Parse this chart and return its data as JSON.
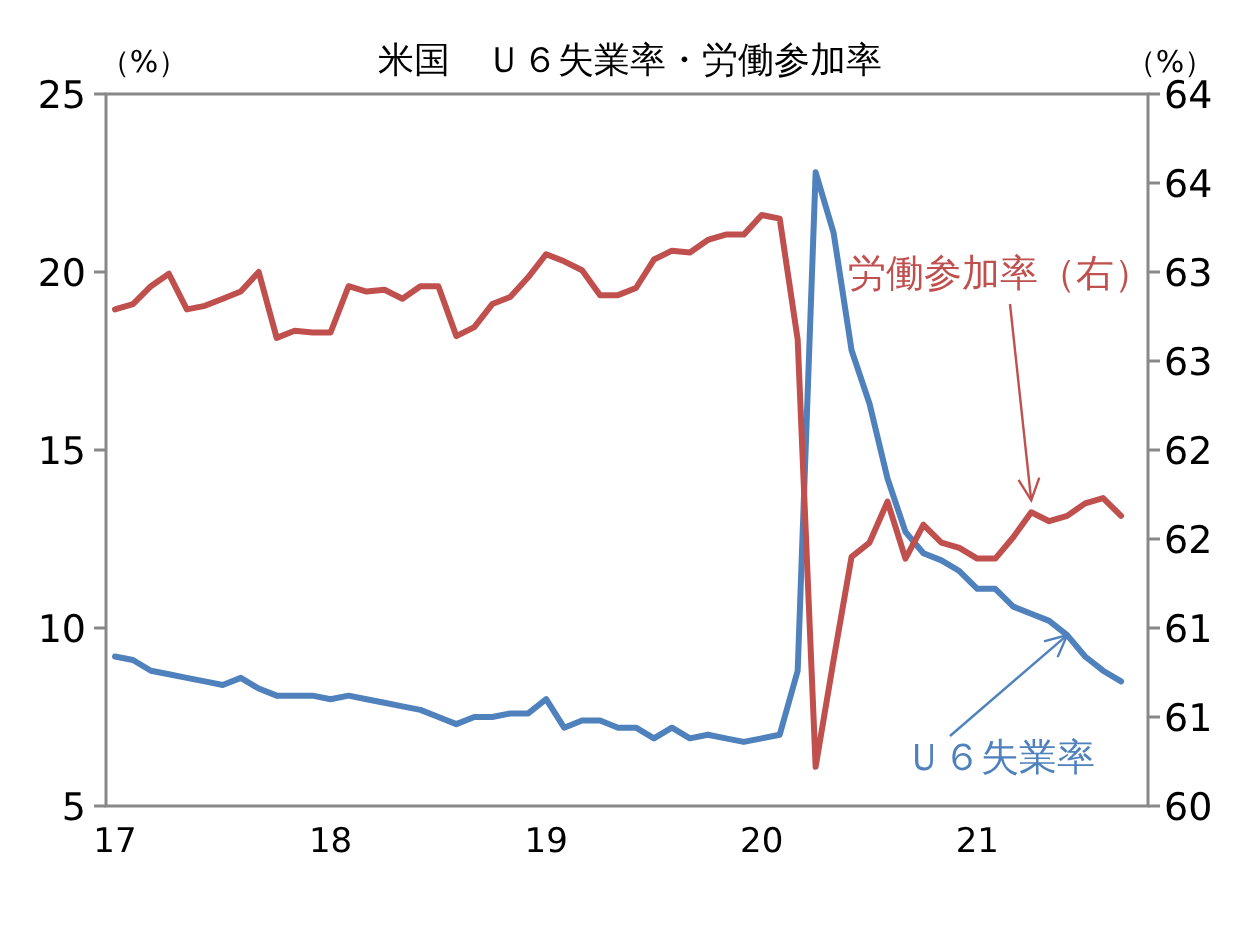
{
  "chart_data": {
    "type": "line",
    "title": "米国　Ｕ６失業率・労働参加率",
    "ylabel": "（%）",
    "y2label": "（%）",
    "categories": [
      "17",
      null,
      null,
      null,
      null,
      null,
      null,
      null,
      null,
      null,
      null,
      null,
      "18",
      null,
      null,
      null,
      null,
      null,
      null,
      null,
      null,
      null,
      null,
      null,
      "19",
      null,
      null,
      null,
      null,
      null,
      null,
      null,
      null,
      null,
      null,
      null,
      "20",
      null,
      null,
      null,
      null,
      null,
      null,
      null,
      null,
      null,
      null,
      null,
      "21",
      null,
      null,
      null,
      null,
      null,
      null,
      null,
      null
    ],
    "ylim": [
      5,
      25
    ],
    "yticks": [
      5,
      10,
      15,
      20,
      25
    ],
    "y2lim": [
      60,
      64
    ],
    "y2ticks": [
      60,
      {
        "value": 60.5,
        "label": "61"
      },
      61,
      {
        "value": 61.5,
        "label": "62"
      },
      62,
      {
        "value": 62.5,
        "label": "63"
      },
      63,
      {
        "value": 63.5,
        "label": "64"
      },
      64
    ],
    "series": [
      {
        "name": "Ｕ６失業率",
        "color": "#4f81bd",
        "values": [
          9.2,
          9.1,
          8.8,
          8.7,
          8.6,
          8.5,
          8.4,
          8.6,
          8.3,
          8.1,
          8.1,
          8.1,
          8.0,
          8.1,
          8.0,
          7.9,
          7.8,
          7.7,
          7.5,
          7.3,
          7.5,
          7.5,
          7.6,
          7.6,
          8.0,
          7.2,
          7.4,
          7.4,
          7.2,
          7.2,
          6.9,
          7.2,
          6.9,
          7.0,
          6.9,
          6.8,
          6.9,
          7.0,
          8.8,
          22.8,
          21.1,
          17.8,
          16.3,
          14.2,
          12.7,
          12.1,
          11.9,
          11.6,
          11.1,
          11.1,
          10.6,
          10.4,
          10.2,
          9.8,
          9.2,
          8.8,
          8.5
        ]
      },
      {
        "name": "労働参加率（右）",
        "color": "#c0504d",
        "axis": "y2",
        "values": [
          62.79,
          62.82,
          62.92,
          62.99,
          62.79,
          62.81,
          62.85,
          62.89,
          63.0,
          62.63,
          62.67,
          62.66,
          62.66,
          62.92,
          62.89,
          62.9,
          62.85,
          62.92,
          62.92,
          62.64,
          62.69,
          62.82,
          62.86,
          62.97,
          63.1,
          63.06,
          63.01,
          62.87,
          62.87,
          62.91,
          63.07,
          63.12,
          63.11,
          63.18,
          63.21,
          63.21,
          63.32,
          63.3,
          62.62,
          60.22,
          60.82,
          61.4,
          61.48,
          61.71,
          61.39,
          61.58,
          61.48,
          61.45,
          61.39,
          61.39,
          61.51,
          61.65,
          61.6,
          61.63,
          61.7,
          61.73,
          61.63
        ]
      }
    ]
  }
}
